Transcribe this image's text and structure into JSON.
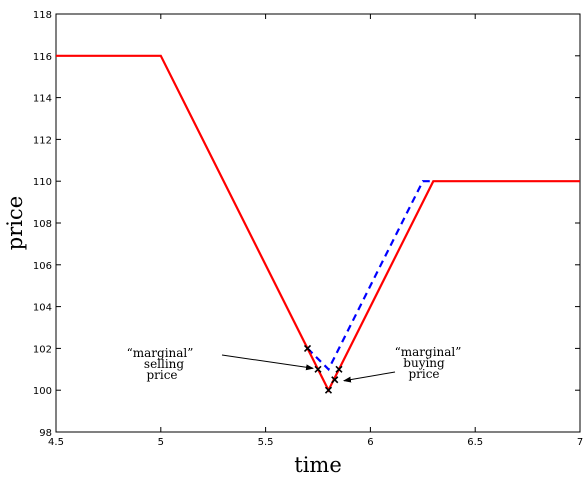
{
  "chart_data": {
    "type": "line",
    "xlabel": "time",
    "ylabel": "price",
    "xlim": [
      4.5,
      7
    ],
    "ylim": [
      98,
      118
    ],
    "xticks": [
      "4.5",
      "5",
      "5.5",
      "6",
      "6.5",
      "7"
    ],
    "yticks": [
      "98",
      "100",
      "102",
      "104",
      "106",
      "108",
      "110",
      "112",
      "114",
      "116",
      "118"
    ],
    "grid": false,
    "series": [
      {
        "color": "#ff0000",
        "style": "solid",
        "x": [
          4.5,
          5.0,
          5.7,
          5.8,
          6.3,
          7.0
        ],
        "y": [
          116,
          116,
          102,
          100,
          110,
          110
        ]
      },
      {
        "color": "#0000ff",
        "style": "dashed",
        "x": [
          5.7,
          5.8,
          6.25,
          6.3
        ],
        "y": [
          102,
          101,
          110,
          110
        ]
      }
    ],
    "markers": {
      "symbol": "x",
      "color": "#000000",
      "x": [
        5.7,
        5.75,
        5.8,
        5.83,
        5.85
      ],
      "y": [
        102,
        101,
        100,
        100.5,
        101
      ]
    },
    "annotations": [
      {
        "lines": [
          "“marginal”",
          "selling",
          "price"
        ],
        "target": [
          5.75,
          101
        ]
      },
      {
        "lines": [
          "“marginal”",
          "buying",
          "price"
        ],
        "target": [
          5.85,
          100.5
        ]
      }
    ]
  }
}
